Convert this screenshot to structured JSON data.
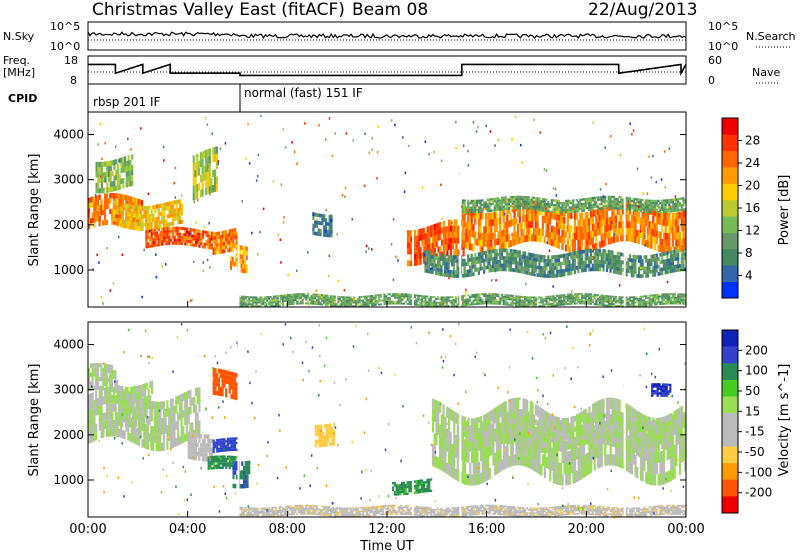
{
  "header": {
    "title": "Christmas Valley East (fitACF)",
    "beam": "Beam 08",
    "date": "22/Aug/2013"
  },
  "labels": {
    "nsky": "N.Sky",
    "nsearch": "N.Search",
    "freq_line1": "Freq.",
    "freq_line2": "[MHz]",
    "nave": "Nave",
    "cpid": "CPID",
    "cpid_mode1": "rbsp 201 IF",
    "cpid_mode2": "normal (fast) 151 IF",
    "xlabel": "Time UT"
  },
  "colors": {
    "power_scale": [
      "#0033ff",
      "#3366aa",
      "#448866",
      "#669966",
      "#77bb55",
      "#bbcc33",
      "#ffcc00",
      "#ff9900",
      "#ff6600",
      "#ff3300",
      "#ee0000"
    ],
    "velocity_scale": [
      "#ee0000",
      "#ff5500",
      "#ff9900",
      "#ffcc44",
      "#bbbbbb",
      "#bbbbbb",
      "#99dd55",
      "#44cc22",
      "#2a8a55",
      "#3344cc",
      "#1122bb"
    ],
    "ground_scatter": "#bbbbbb"
  },
  "chart_data": [
    {
      "type": "line",
      "name": "N.Sky / N.Search panel",
      "ylabel_left": "N.Sky",
      "ylabel_right": "N.Search",
      "yticks_left": [
        "10^5",
        "10^0"
      ],
      "yticks_right": [
        "10^5",
        "10^0"
      ],
      "xlim_hours": [
        0,
        24
      ]
    },
    {
      "type": "line",
      "name": "Frequency / Nave panel",
      "ylabel_left": "Freq. [MHz]",
      "ylabel_right": "Nave",
      "yticks_left": [
        "18",
        "8"
      ],
      "yticks_right": [
        "60",
        "0"
      ],
      "x_hours": [
        0,
        1.1,
        1.1,
        2.2,
        2.2,
        3.3,
        3.3,
        6.1,
        6.1,
        15.0,
        15.0,
        21.3,
        21.3,
        23.8,
        23.8,
        24
      ],
      "freq_mhz": [
        16,
        16,
        12,
        16,
        12,
        16,
        12,
        12,
        11,
        11,
        16,
        16,
        12,
        16,
        12,
        16
      ]
    },
    {
      "type": "table",
      "name": "CPID",
      "segments": [
        {
          "label": "rbsp 201 IF",
          "start_hour": 0,
          "end_hour": 6.1
        },
        {
          "label": "normal (fast) 151 IF",
          "start_hour": 6.1,
          "end_hour": 24
        }
      ]
    },
    {
      "type": "heatmap",
      "name": "Power",
      "ylabel": "Slant Range [km]",
      "xlabel": "Time UT",
      "xlim_hours": [
        0,
        24
      ],
      "ylim_km": [
        180,
        4500
      ],
      "xticks": [
        "00:00",
        "04:00",
        "08:00",
        "12:00",
        "16:00",
        "20:00",
        "00:00"
      ],
      "yticks": [
        1000,
        2000,
        3000,
        4000
      ],
      "colorbar_label": "Power [dB]",
      "colorbar_ticks": [
        4,
        8,
        12,
        16,
        20,
        24,
        28
      ],
      "colorbar_range": [
        0,
        30
      ],
      "bands": [
        {
          "t0": 0.0,
          "t1": 2.2,
          "r0": 1900,
          "r1": 2600,
          "level": 22
        },
        {
          "t0": 1.0,
          "t1": 3.8,
          "r0": 1950,
          "r1": 2500,
          "level": 18
        },
        {
          "t0": 2.3,
          "t1": 5.0,
          "r0": 1500,
          "r1": 1900,
          "level": 24
        },
        {
          "t0": 5.0,
          "t1": 6.0,
          "r0": 1400,
          "r1": 1900,
          "level": 22
        },
        {
          "t0": 0.3,
          "t1": 1.8,
          "r0": 2800,
          "r1": 3500,
          "level": 12
        },
        {
          "t0": 4.2,
          "t1": 5.2,
          "r0": 2600,
          "r1": 3600,
          "level": 14
        },
        {
          "t0": 5.7,
          "t1": 6.4,
          "r0": 1000,
          "r1": 1600,
          "level": 20
        },
        {
          "t0": 9.0,
          "t1": 9.8,
          "r0": 1800,
          "r1": 2300,
          "level": 6
        },
        {
          "t0": 12.8,
          "t1": 15.1,
          "r0": 1200,
          "r1": 2000,
          "level": 24
        },
        {
          "t0": 15.0,
          "t1": 24.0,
          "r0": 1500,
          "r1": 2400,
          "level": 22
        },
        {
          "t0": 15.0,
          "t1": 24.0,
          "r0": 2300,
          "r1": 2600,
          "level": 10
        },
        {
          "t0": 13.5,
          "t1": 24.0,
          "r0": 900,
          "r1": 1400,
          "level": 8
        },
        {
          "t0": 6.0,
          "t1": 24.0,
          "r0": 200,
          "r1": 450,
          "level": 10
        }
      ]
    },
    {
      "type": "heatmap",
      "name": "Velocity",
      "ylabel": "Slant Range [km]",
      "xlabel": "Time UT",
      "xlim_hours": [
        0,
        24
      ],
      "ylim_km": [
        180,
        4500
      ],
      "xticks": [
        "00:00",
        "04:00",
        "08:00",
        "12:00",
        "16:00",
        "20:00",
        "00:00"
      ],
      "yticks": [
        1000,
        2000,
        3000,
        4000
      ],
      "colorbar_label": "Velocity [m s^-1]",
      "colorbar_ticks": [
        200,
        100,
        50,
        15,
        -15,
        -50,
        -100,
        -200
      ],
      "colorbar_range": [
        -250,
        250
      ],
      "bands": [
        {
          "t0": 0.0,
          "t1": 4.5,
          "r0": 1800,
          "r1": 2900,
          "level": 0
        },
        {
          "t0": 0.0,
          "t1": 1.2,
          "r0": 2900,
          "r1": 3500,
          "level": 0
        },
        {
          "t0": 1.2,
          "t1": 2.6,
          "r0": 2300,
          "r1": 3200,
          "level": 0
        },
        {
          "t0": 4.0,
          "t1": 5.0,
          "r0": 1500,
          "r1": 2100,
          "level": -30
        },
        {
          "t0": 5.0,
          "t1": 6.0,
          "r0": 1600,
          "r1": 1900,
          "level": 150
        },
        {
          "t0": 4.8,
          "t1": 6.0,
          "r0": 1200,
          "r1": 1500,
          "level": 60
        },
        {
          "t0": 5.0,
          "t1": 6.0,
          "r0": 2800,
          "r1": 3400,
          "level": -220
        },
        {
          "t0": 5.8,
          "t1": 6.5,
          "r0": 900,
          "r1": 1500,
          "level": 100
        },
        {
          "t0": 9.1,
          "t1": 9.9,
          "r0": 1800,
          "r1": 2300,
          "level": -80
        },
        {
          "t0": 12.2,
          "t1": 13.8,
          "r0": 700,
          "r1": 1000,
          "level": 60
        },
        {
          "t0": 13.8,
          "t1": 24.0,
          "r0": 1100,
          "r1": 2600,
          "level": 0
        },
        {
          "t0": 15.0,
          "t1": 24.0,
          "r0": 1700,
          "r1": 2400,
          "level": 0
        },
        {
          "t0": 6.0,
          "t1": 24.0,
          "r0": 200,
          "r1": 420,
          "level": -40
        },
        {
          "t0": 22.6,
          "t1": 23.4,
          "r0": 2800,
          "r1": 3100,
          "level": 200
        }
      ]
    }
  ]
}
